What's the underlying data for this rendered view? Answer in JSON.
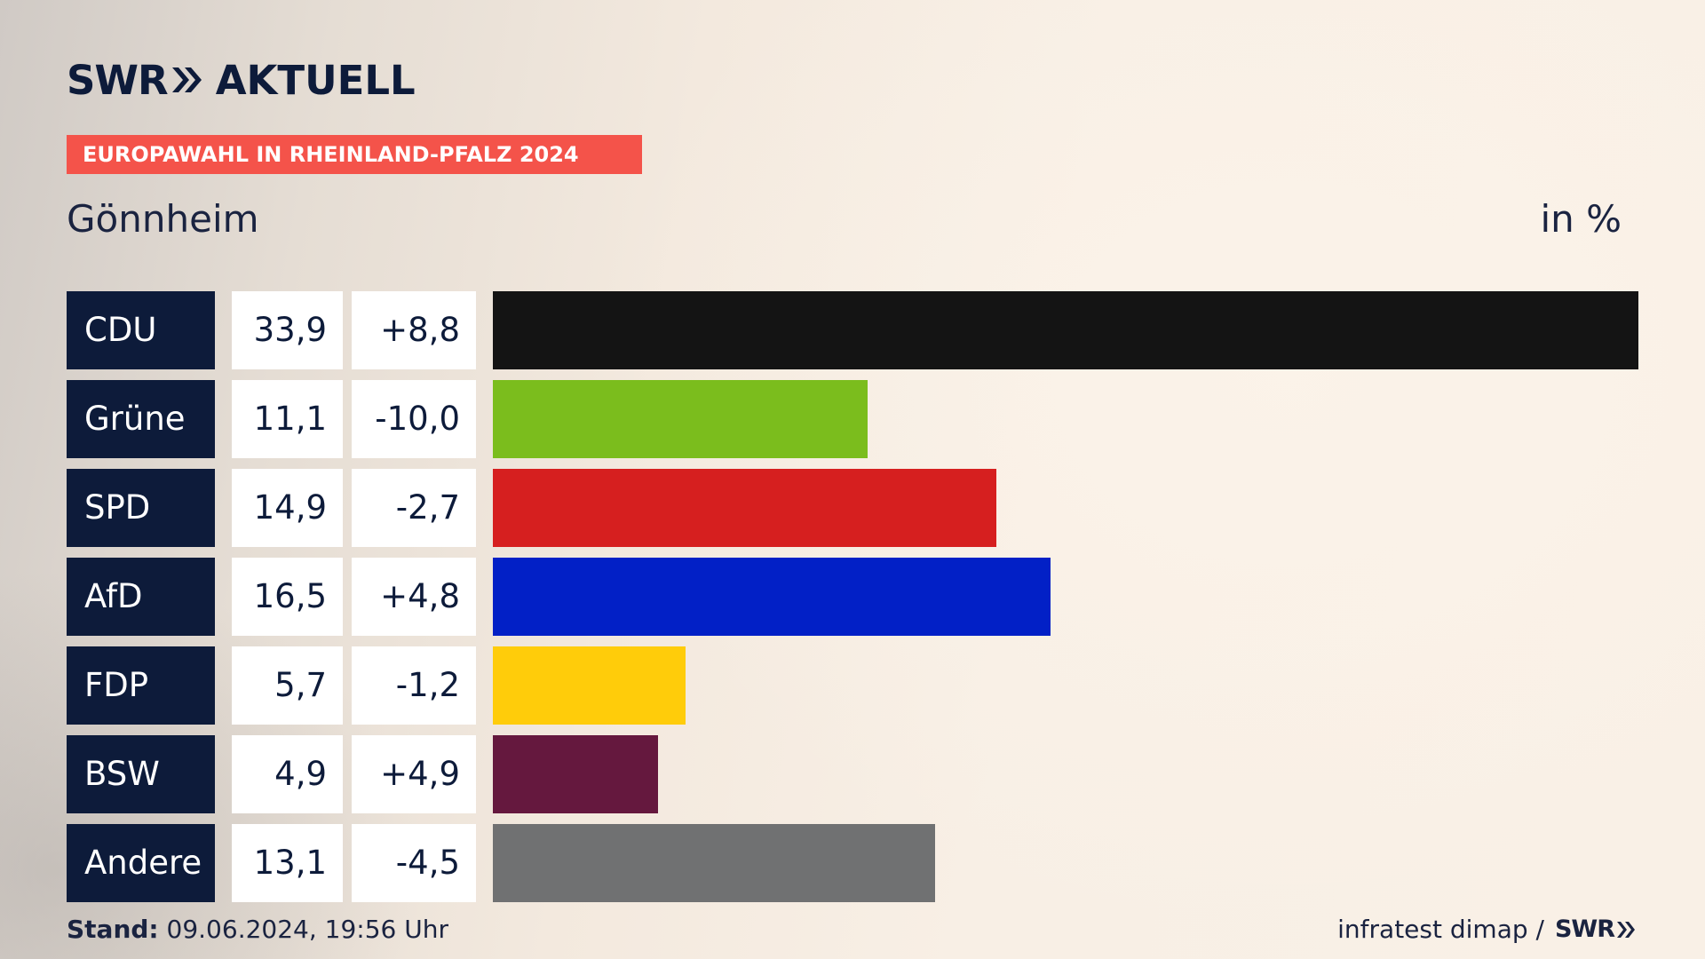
{
  "logo": {
    "brand": "SWR",
    "product": "AKTUELL"
  },
  "banner": "EUROPAWAHL IN RHEINLAND-PFALZ 2024",
  "place": "Gönnheim",
  "unit": "in %",
  "colors": {
    "navy": "#0d1b3a",
    "banner": "#f4534a"
  },
  "chart_data": {
    "type": "bar",
    "orientation": "horizontal",
    "categories": [
      "CDU",
      "Grüne",
      "SPD",
      "AfD",
      "FDP",
      "BSW",
      "Andere"
    ],
    "series": [
      {
        "name": "",
        "values": [
          33.9,
          11.1,
          14.9,
          16.5,
          5.7,
          4.9,
          13.1
        ]
      }
    ],
    "value_labels": [
      "33,9",
      "11,1",
      "14,9",
      "16,5",
      "5,7",
      "4,9",
      "13,1"
    ],
    "change_labels": [
      "+8,8",
      "-10,0",
      "-2,7",
      "+4,8",
      "-1,2",
      "+4,9",
      "-4,5"
    ],
    "bar_colors": [
      "#141414",
      "#7bbd1d",
      "#d61f1f",
      "#0220c6",
      "#ffcc0a",
      "#65183e",
      "#707172"
    ],
    "xlim": [
      0,
      33.9
    ],
    "title": "",
    "xlabel": "",
    "ylabel": ""
  },
  "footer": {
    "stand_label": "Stand:",
    "stand_value": "09.06.2024, 19:56 Uhr",
    "source": "infratest dimap /",
    "source_brand": "SWR"
  }
}
